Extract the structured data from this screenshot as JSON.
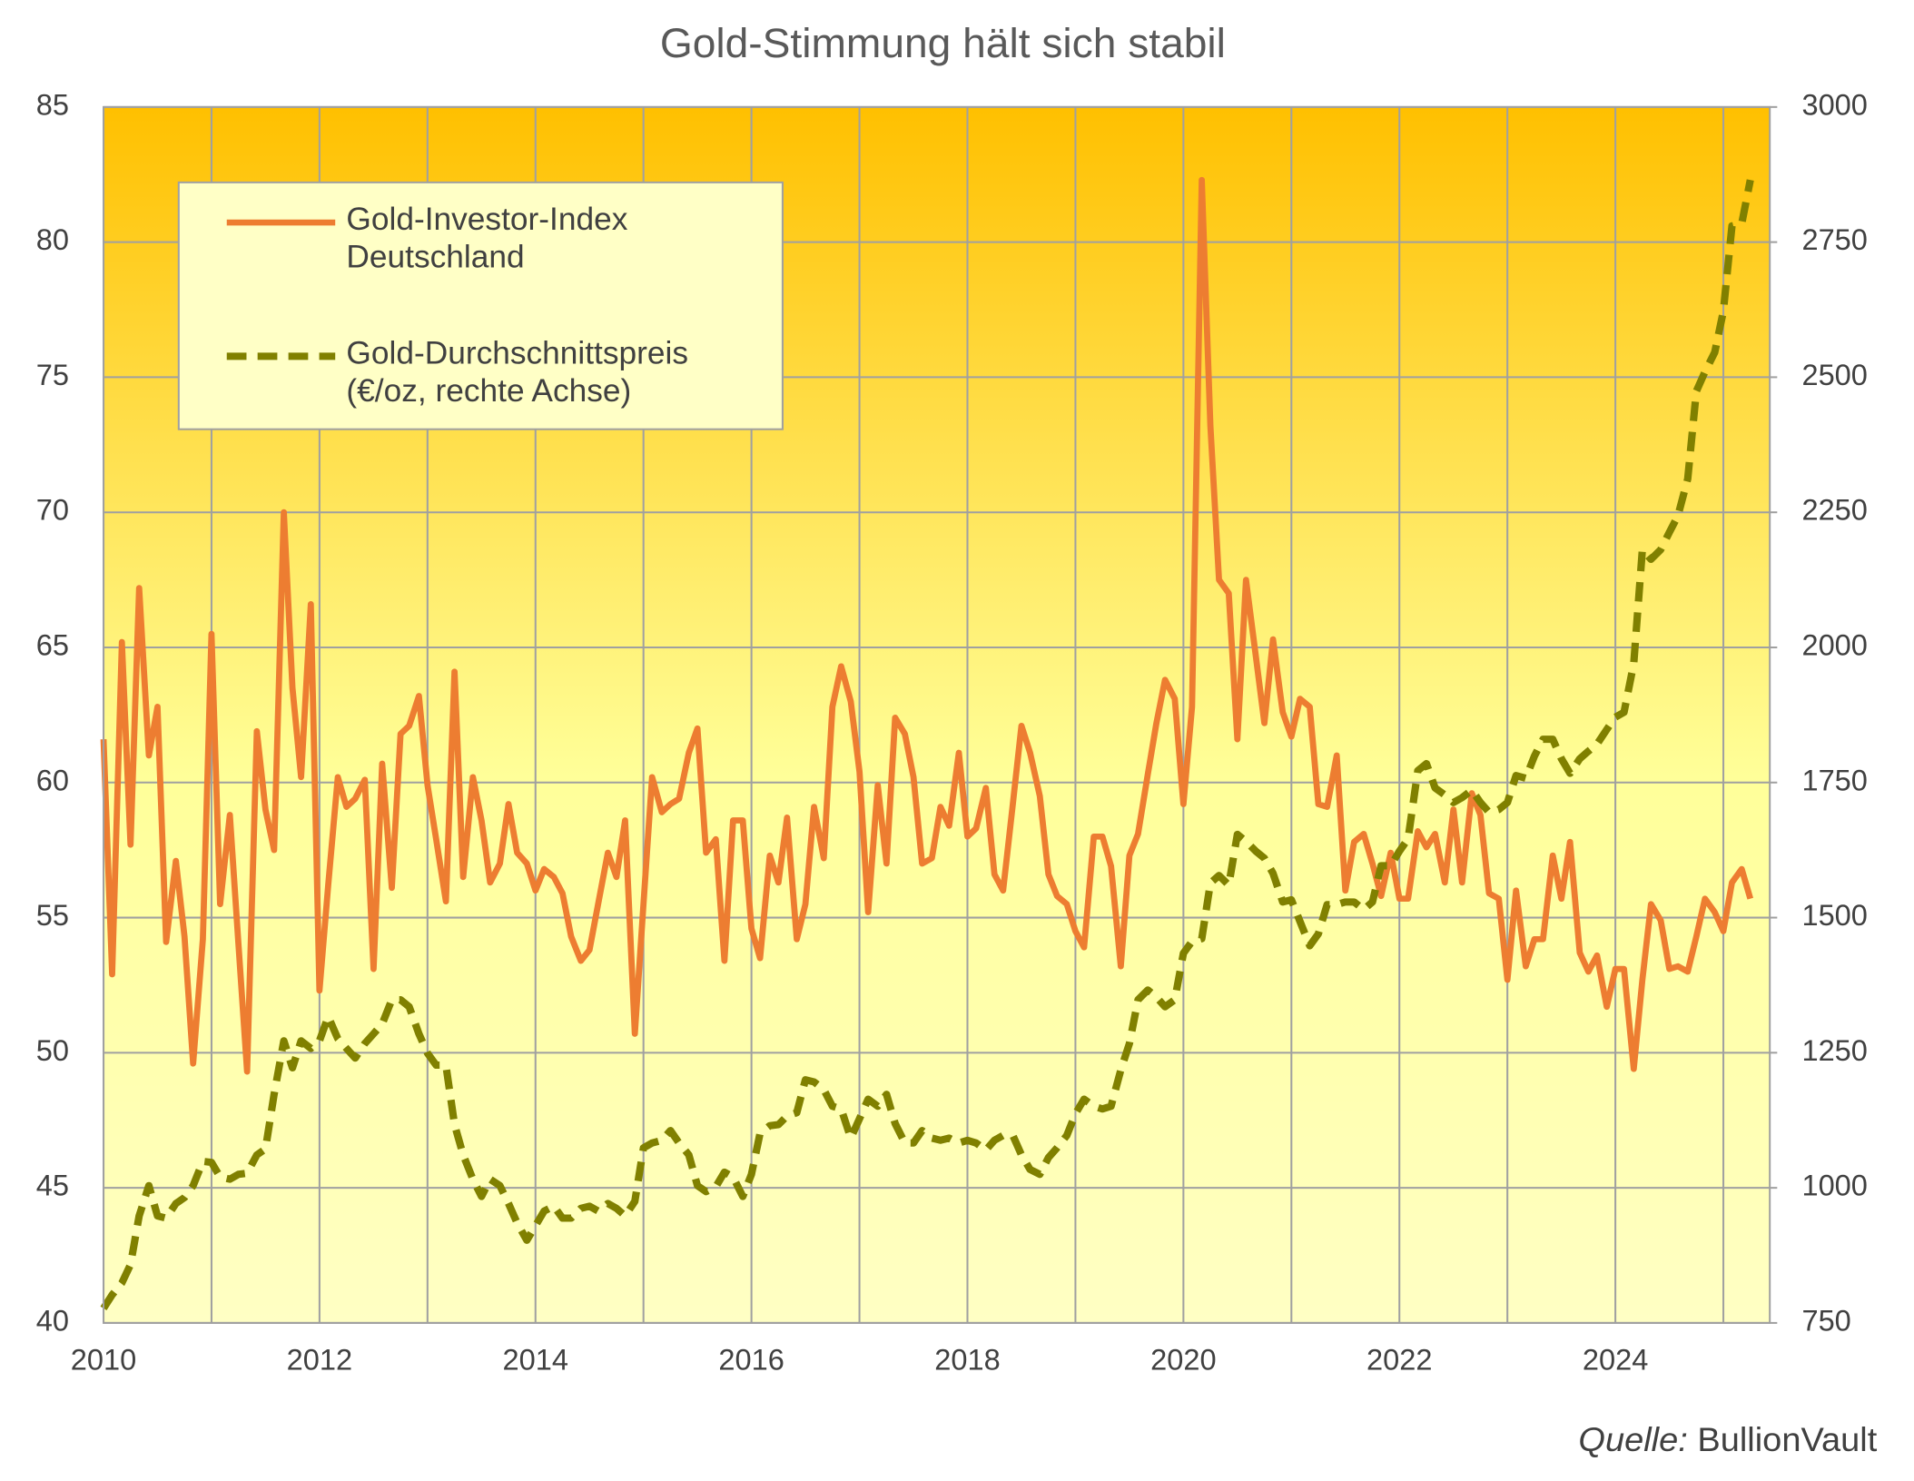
{
  "chart_data": {
    "type": "line",
    "title": "Gold-Stimmung hält sich stabil",
    "source_label": "Quelle:",
    "source": "BullionVault",
    "x": [
      2010.0,
      2010.08,
      2010.17,
      2010.25,
      2010.33,
      2010.42,
      2010.5,
      2010.58,
      2010.67,
      2010.75,
      2010.83,
      2010.92,
      2011.0,
      2011.08,
      2011.17,
      2011.25,
      2011.33,
      2011.42,
      2011.5,
      2011.58,
      2011.67,
      2011.75,
      2011.83,
      2011.92,
      2012.0,
      2012.08,
      2012.17,
      2012.25,
      2012.33,
      2012.42,
      2012.5,
      2012.58,
      2012.67,
      2012.75,
      2012.83,
      2012.92,
      2013.0,
      2013.08,
      2013.17,
      2013.25,
      2013.33,
      2013.42,
      2013.5,
      2013.58,
      2013.67,
      2013.75,
      2013.83,
      2013.92,
      2014.0,
      2014.08,
      2014.17,
      2014.25,
      2014.33,
      2014.42,
      2014.5,
      2014.58,
      2014.67,
      2014.75,
      2014.83,
      2014.92,
      2015.0,
      2015.08,
      2015.17,
      2015.25,
      2015.33,
      2015.42,
      2015.5,
      2015.58,
      2015.67,
      2015.75,
      2015.83,
      2015.92,
      2016.0,
      2016.08,
      2016.17,
      2016.25,
      2016.33,
      2016.42,
      2016.5,
      2016.58,
      2016.67,
      2016.75,
      2016.83,
      2016.92,
      2017.0,
      2017.08,
      2017.17,
      2017.25,
      2017.33,
      2017.42,
      2017.5,
      2017.58,
      2017.67,
      2017.75,
      2017.83,
      2017.92,
      2018.0,
      2018.08,
      2018.17,
      2018.25,
      2018.33,
      2018.42,
      2018.5,
      2018.58,
      2018.67,
      2018.75,
      2018.83,
      2018.92,
      2019.0,
      2019.08,
      2019.17,
      2019.25,
      2019.33,
      2019.42,
      2019.5,
      2019.58,
      2019.67,
      2019.75,
      2019.83,
      2019.92,
      2020.0,
      2020.08,
      2020.17,
      2020.25,
      2020.33,
      2020.42,
      2020.5,
      2020.58,
      2020.67,
      2020.75,
      2020.83,
      2020.92,
      2021.0,
      2021.08,
      2021.17,
      2021.25,
      2021.33,
      2021.42,
      2021.5,
      2021.58,
      2021.67,
      2021.75,
      2021.83,
      2021.92,
      2022.0,
      2022.08,
      2022.17,
      2022.25,
      2022.33,
      2022.42,
      2022.5,
      2022.58,
      2022.67,
      2022.75,
      2022.83,
      2022.92,
      2023.0,
      2023.08,
      2023.17,
      2023.25,
      2023.33,
      2023.42,
      2023.5,
      2023.58,
      2023.67,
      2023.75,
      2023.83,
      2023.92,
      2024.0,
      2024.08,
      2024.17,
      2024.25,
      2024.33,
      2024.42,
      2024.5,
      2024.58,
      2024.67,
      2024.75,
      2024.83,
      2024.92,
      2025.0,
      2025.08,
      2025.17,
      2025.25
    ],
    "series": [
      {
        "name": "Gold-Investor-Index Deutschland",
        "color": "#ed7d31",
        "axis": "y",
        "values": [
          61.6,
          52.9,
          65.2,
          57.7,
          67.2,
          61.0,
          62.8,
          54.1,
          57.1,
          54.3,
          49.6,
          54.2,
          65.5,
          55.5,
          58.8,
          54.0,
          49.3,
          61.9,
          59.0,
          57.5,
          70.0,
          63.5,
          60.2,
          66.6,
          52.3,
          56.2,
          60.2,
          59.1,
          59.4,
          60.1,
          53.1,
          60.7,
          56.1,
          61.8,
          62.1,
          63.2,
          59.9,
          57.9,
          55.6,
          64.1,
          56.5,
          60.2,
          58.6,
          56.3,
          57.0,
          59.2,
          57.4,
          57.0,
          56.0,
          56.8,
          56.5,
          55.9,
          54.3,
          53.4,
          53.8,
          55.5,
          57.4,
          56.5,
          58.6,
          50.7,
          55.5,
          60.2,
          58.9,
          59.2,
          59.4,
          61.1,
          62.0,
          57.4,
          57.9,
          53.4,
          58.6,
          58.6,
          54.6,
          53.5,
          57.3,
          56.3,
          58.7,
          54.2,
          55.5,
          59.1,
          57.2,
          62.8,
          64.3,
          63.0,
          60.4,
          55.2,
          59.9,
          57.0,
          62.4,
          61.8,
          60.2,
          57.0,
          57.2,
          59.1,
          58.4,
          61.1,
          58.0,
          58.3,
          59.8,
          56.6,
          56.0,
          59.2,
          62.1,
          61.1,
          59.5,
          56.6,
          55.8,
          55.5,
          54.5,
          53.9,
          58.0,
          58.0,
          56.9,
          53.2,
          57.3,
          58.1,
          60.3,
          62.2,
          63.8,
          63.1,
          59.2,
          62.8,
          82.3,
          73.2,
          67.5,
          67.0,
          61.6,
          67.5,
          64.7,
          62.2,
          65.3,
          62.6,
          61.7,
          63.1,
          62.8,
          59.2,
          59.1,
          61.0,
          56.0,
          57.8,
          58.1,
          57.0,
          55.8,
          57.4,
          55.7,
          55.7,
          58.2,
          57.6,
          58.1,
          56.3,
          59.0,
          56.3,
          59.6,
          58.8,
          55.9,
          55.7,
          52.7,
          56.0,
          53.2,
          54.2,
          54.2,
          57.3,
          55.7,
          57.8,
          53.7,
          53.0,
          53.6,
          51.7,
          53.1,
          53.1,
          49.4,
          52.7,
          55.5,
          54.9,
          53.1,
          53.2,
          53.0,
          54.3,
          55.7,
          55.2,
          54.5,
          56.3,
          56.8,
          55.7
        ]
      },
      {
        "name": "Gold-Durchschnittspreis (€/oz, rechte Achse)",
        "color": "#808000",
        "axis": "y2",
        "dashed": true,
        "values": [
          777,
          802,
          824,
          858,
          948,
          1004,
          948,
          944,
          971,
          982,
          1004,
          1049,
          1047,
          1020,
          1016,
          1025,
          1027,
          1061,
          1072,
          1173,
          1272,
          1222,
          1272,
          1258,
          1272,
          1317,
          1276,
          1258,
          1240,
          1267,
          1285,
          1303,
          1348,
          1348,
          1335,
          1285,
          1249,
          1227,
          1227,
          1117,
          1061,
          1016,
          984,
          1016,
          1004,
          971,
          935,
          903,
          930,
          957,
          966,
          944,
          944,
          962,
          966,
          957,
          971,
          962,
          948,
          975,
          1074,
          1083,
          1088,
          1106,
          1083,
          1061,
          1004,
          993,
          1002,
          1029,
          1020,
          984,
          1025,
          1101,
          1115,
          1117,
          1133,
          1139,
          1200,
          1196,
          1182,
          1151,
          1146,
          1092,
          1128,
          1164,
          1151,
          1173,
          1119,
          1083,
          1083,
          1106,
          1092,
          1088,
          1092,
          1083,
          1088,
          1083,
          1070,
          1088,
          1097,
          1097,
          1061,
          1034,
          1025,
          1056,
          1074,
          1097,
          1137,
          1164,
          1151,
          1146,
          1151,
          1218,
          1267,
          1348,
          1366,
          1353,
          1335,
          1348,
          1434,
          1456,
          1461,
          1564,
          1578,
          1560,
          1654,
          1641,
          1623,
          1610,
          1582,
          1529,
          1533,
          1493,
          1448,
          1470,
          1524,
          1524,
          1529,
          1529,
          1515,
          1529,
          1596,
          1596,
          1623,
          1646,
          1772,
          1785,
          1740,
          1727,
          1713,
          1722,
          1736,
          1713,
          1695,
          1700,
          1713,
          1763,
          1758,
          1799,
          1830,
          1830,
          1794,
          1767,
          1794,
          1808,
          1821,
          1848,
          1871,
          1880,
          1970,
          2181,
          2163,
          2181,
          2213,
          2244,
          2312,
          2474,
          2510,
          2546,
          2622,
          2780,
          2784,
          2865
        ]
      }
    ],
    "xlim": [
      2010,
      2025.43
    ],
    "xticks": [
      2010,
      2012,
      2014,
      2016,
      2018,
      2020,
      2022,
      2024
    ],
    "xgrid": [
      2010,
      2011,
      2012,
      2013,
      2014,
      2015,
      2016,
      2017,
      2018,
      2019,
      2020,
      2021,
      2022,
      2023,
      2024,
      2025
    ],
    "ylim": [
      40,
      85
    ],
    "yticks": [
      40,
      45,
      50,
      55,
      60,
      65,
      70,
      75,
      80,
      85
    ],
    "y2lim": [
      750,
      3000
    ],
    "y2ticks": [
      750,
      1000,
      1250,
      1500,
      1750,
      2000,
      2250,
      2500,
      2750,
      3000
    ],
    "grid": true,
    "legend": "upper left"
  }
}
